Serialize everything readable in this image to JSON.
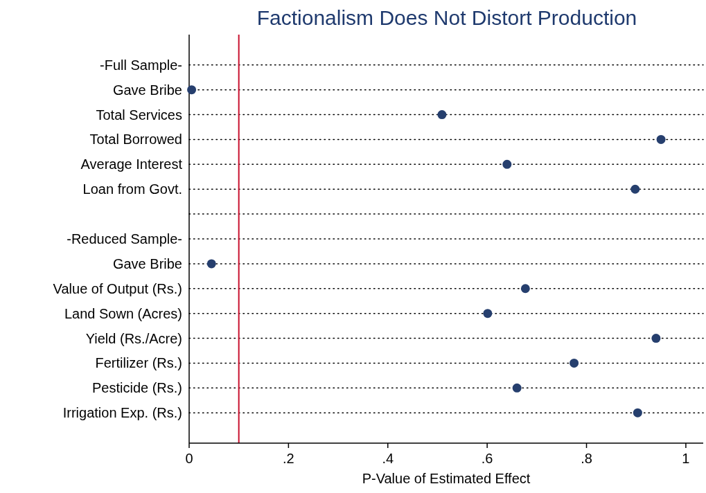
{
  "chart_data": {
    "type": "scatter",
    "orientation": "horizontal",
    "title": "Factionalism Does Not Distort Production",
    "xlabel": "P-Value of Estimated Effect",
    "categories": [
      "-Full Sample-",
      "Gave Bribe",
      "Total Services",
      "Total Borrowed",
      "Average Interest",
      "Loan from Govt.",
      null,
      "-Reduced Sample-",
      "Gave Bribe",
      "Value of Output (Rs.)",
      "Land Sown (Acres)",
      "Yield (Rs./Acre)",
      "Fertilizer (Rs.)",
      "Pesticide (Rs.)",
      "Irrigation Exp. (Rs.)"
    ],
    "series": [
      {
        "color": "#263f6e",
        "values": [
          null,
          0.005,
          0.509,
          0.95,
          0.64,
          0.898,
          null,
          null,
          0.045,
          0.677,
          0.601,
          0.94,
          0.775,
          0.66,
          0.903
        ]
      }
    ],
    "xlim": [
      0,
      1.035
    ],
    "xticks": [
      0,
      {
        "value": 0.2,
        "label": ".2"
      },
      {
        "value": 0.4,
        "label": ".4"
      },
      {
        "value": 0.6,
        "label": ".6"
      },
      {
        "value": 0.8,
        "label": ".8"
      },
      1
    ],
    "ref_lines": [
      {
        "axis": "x",
        "value": 0.1,
        "color": "#c8102e"
      }
    ],
    "grid": "y",
    "marker": "circle"
  }
}
